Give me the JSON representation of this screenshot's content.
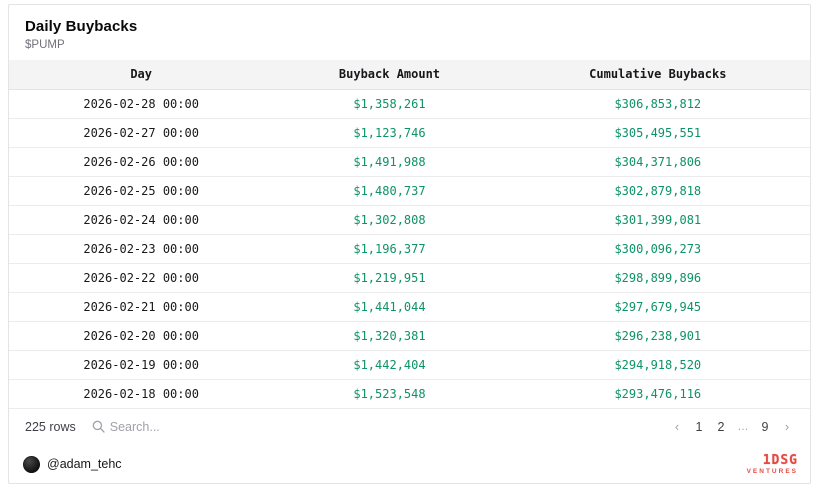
{
  "header": {
    "title": "Daily Buybacks",
    "subtitle": "$PUMP"
  },
  "table": {
    "columns": [
      "Day",
      "Buyback Amount",
      "Cumulative Buybacks"
    ],
    "rows": [
      {
        "day": "2026-02-28 00:00",
        "buyback_amount": "$1,358,261",
        "cumulative_buybacks": "$306,853,812"
      },
      {
        "day": "2026-02-27 00:00",
        "buyback_amount": "$1,123,746",
        "cumulative_buybacks": "$305,495,551"
      },
      {
        "day": "2026-02-26 00:00",
        "buyback_amount": "$1,491,988",
        "cumulative_buybacks": "$304,371,806"
      },
      {
        "day": "2026-02-25 00:00",
        "buyback_amount": "$1,480,737",
        "cumulative_buybacks": "$302,879,818"
      },
      {
        "day": "2026-02-24 00:00",
        "buyback_amount": "$1,302,808",
        "cumulative_buybacks": "$301,399,081"
      },
      {
        "day": "2026-02-23 00:00",
        "buyback_amount": "$1,196,377",
        "cumulative_buybacks": "$300,096,273"
      },
      {
        "day": "2026-02-22 00:00",
        "buyback_amount": "$1,219,951",
        "cumulative_buybacks": "$298,899,896"
      },
      {
        "day": "2026-02-21 00:00",
        "buyback_amount": "$1,441,044",
        "cumulative_buybacks": "$297,679,945"
      },
      {
        "day": "2026-02-20 00:00",
        "buyback_amount": "$1,320,381",
        "cumulative_buybacks": "$296,238,901"
      },
      {
        "day": "2026-02-19 00:00",
        "buyback_amount": "$1,442,404",
        "cumulative_buybacks": "$294,918,520"
      },
      {
        "day": "2026-02-18 00:00",
        "buyback_amount": "$1,523,548",
        "cumulative_buybacks": "$293,476,116"
      }
    ]
  },
  "controls": {
    "row_count": "225 rows",
    "search_placeholder": "Search...",
    "pagination": {
      "prev": "‹",
      "pages": [
        "1",
        "2",
        "…",
        "9"
      ],
      "next": "›"
    }
  },
  "footer": {
    "handle": "@adam_tehc",
    "logo_text": "1DSG",
    "logo_subtext": "VENTURES"
  },
  "colors": {
    "value_green": "#0e9268",
    "logo_red": "#df372e",
    "header_bg": "#f4f4f5"
  }
}
